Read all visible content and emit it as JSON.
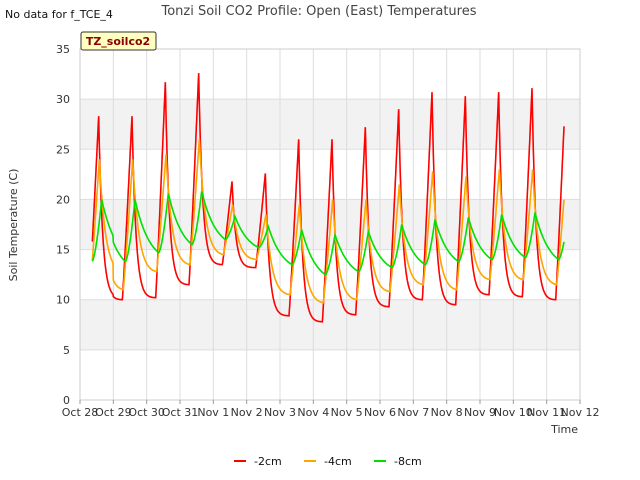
{
  "chart_data": {
    "type": "line",
    "title": "Tonzi Soil CO2 Profile: Open (East) Temperatures",
    "no_data_note": "No data for f_TCE_4",
    "badge": "TZ_soilco2",
    "xlabel": "Time",
    "ylabel": "Soil Temperature (C)",
    "ylim": [
      0,
      35
    ],
    "yticks": [
      "0",
      "5",
      "10",
      "15",
      "20",
      "25",
      "30",
      "35"
    ],
    "xticks": [
      "Oct 28",
      "Oct 29",
      "Oct 30",
      "Oct 31",
      "Nov 1",
      "Nov 2",
      "Nov 3",
      "Nov 4",
      "Nov 5",
      "Nov 6",
      "Nov 7",
      "Nov 8",
      "Nov 9",
      "Nov 10",
      "Nov 11",
      "Nov 12"
    ],
    "xlim": [
      0,
      15
    ],
    "grid": true,
    "legend_position": "bottom-center",
    "daily_summary": {
      "days": [
        1,
        2,
        3,
        4,
        5,
        6,
        7,
        8,
        9,
        10,
        11,
        12,
        13,
        14
      ],
      "series": [
        {
          "name": "-2cm",
          "color": "#ff0000",
          "daily_max": [
            28.3,
            31.7,
            32.6,
            21.8,
            22.6,
            26.0,
            26.0,
            27.2,
            29.0,
            30.7,
            30.3,
            30.7,
            31.1,
            30.3
          ],
          "daily_min": [
            10.0,
            10.2,
            11.5,
            13.5,
            13.2,
            8.4,
            7.8,
            8.5,
            9.3,
            10.0,
            9.5,
            10.5,
            10.3,
            10.0
          ]
        },
        {
          "name": "-4cm",
          "color": "#ffa500",
          "daily_max": [
            24.0,
            24.5,
            26.0,
            19.5,
            18.5,
            19.5,
            20.0,
            20.0,
            21.5,
            22.8,
            22.3,
            23.0,
            23.0,
            22.5
          ],
          "daily_min": [
            11.0,
            12.8,
            13.5,
            14.5,
            14.0,
            10.5,
            9.7,
            10.0,
            10.8,
            11.5,
            11.0,
            12.0,
            12.0,
            11.5
          ]
        },
        {
          "name": "-8cm",
          "color": "#00e000",
          "daily_max": [
            20.0,
            20.6,
            20.8,
            18.3,
            17.3,
            17.0,
            16.5,
            16.8,
            17.5,
            18.0,
            18.2,
            18.5,
            18.7,
            18.5
          ],
          "daily_min": [
            13.8,
            14.7,
            15.5,
            16.0,
            15.2,
            13.5,
            12.5,
            12.8,
            13.2,
            13.5,
            13.8,
            14.0,
            14.2,
            14.0
          ]
        }
      ]
    }
  }
}
